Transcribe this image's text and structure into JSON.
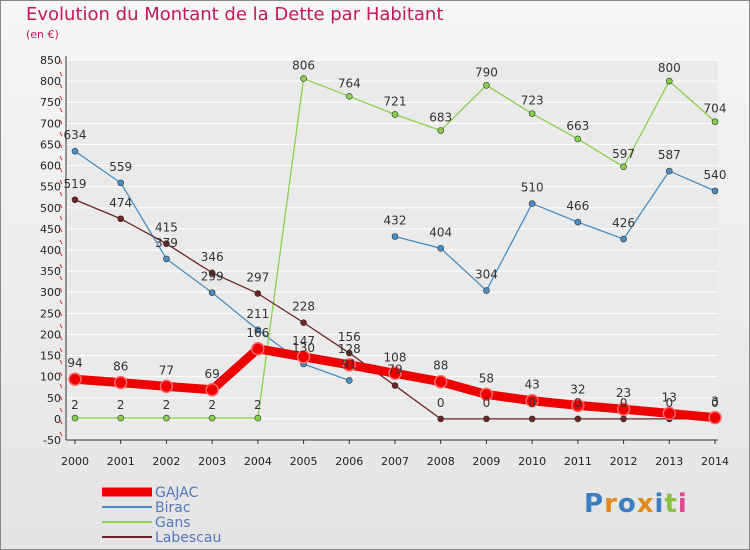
{
  "title": "Evolution du Montant de la Dette par Habitant",
  "subtitle": "(en €)",
  "logo_text": "Proxiti",
  "colors": {
    "title": "#c2185b",
    "GAJAC": "#ee0000",
    "Birac": "#4a8ec5",
    "Gans": "#8ad04a",
    "Labescau": "#6d2424",
    "grid": "#ffffff",
    "axis": "#333333"
  },
  "chart_data": {
    "type": "line",
    "title": "Evolution du Montant de la Dette par Habitant",
    "ylabel": "(en €)",
    "xlabel": "",
    "x": [
      2000,
      2001,
      2002,
      2003,
      2004,
      2005,
      2006,
      2007,
      2008,
      2009,
      2010,
      2011,
      2012,
      2013,
      2014
    ],
    "ylim": [
      -50,
      850
    ],
    "yticks": [
      -50,
      0,
      50,
      100,
      150,
      200,
      250,
      300,
      350,
      400,
      450,
      500,
      550,
      600,
      650,
      700,
      750,
      800,
      850
    ],
    "grid": true,
    "legend": "bottom-left",
    "series": [
      {
        "name": "GAJAC",
        "values": [
          94,
          86,
          77,
          69,
          166,
          147,
          128,
          108,
          88,
          58,
          43,
          32,
          23,
          13,
          3
        ]
      },
      {
        "name": "Birac",
        "values": [
          634,
          559,
          379,
          299,
          211,
          130,
          91,
          null,
          null,
          null,
          null,
          null,
          null,
          null,
          null
        ]
      },
      {
        "name": "Birac",
        "values": [
          null,
          null,
          null,
          null,
          null,
          null,
          null,
          432,
          404,
          304,
          510,
          466,
          426,
          587,
          540
        ]
      },
      {
        "name": "Gans",
        "values": [
          2,
          2,
          2,
          2,
          2,
          806,
          764,
          721,
          683,
          790,
          723,
          663,
          597,
          800,
          704
        ]
      },
      {
        "name": "Labescau",
        "values": [
          519,
          474,
          415,
          346,
          297,
          228,
          156,
          79,
          0,
          0,
          0,
          0,
          0,
          0,
          0
        ]
      }
    ],
    "labels": {
      "GAJAC": [
        "94",
        "86",
        "77",
        "69",
        "166",
        "147",
        "128",
        "108",
        "88",
        "58",
        "43",
        "32",
        "23",
        "13",
        "3"
      ],
      "Birac": [
        "634",
        "559",
        "379",
        "299",
        "211",
        "130",
        "91",
        "432",
        "404",
        "304",
        "510",
        "466",
        "426",
        "587",
        "540"
      ],
      "Gans": [
        "2",
        "2",
        "2",
        "2",
        "2",
        "806",
        "764",
        "721",
        "683",
        "790",
        "723",
        "663",
        "597",
        "800",
        "704"
      ],
      "Labescau": [
        "519",
        "474",
        "415",
        "346",
        "297",
        "228",
        "156",
        "79",
        "0",
        "0",
        "0",
        "0",
        "0",
        "0",
        "0"
      ]
    }
  },
  "legend": [
    {
      "name": "GAJAC"
    },
    {
      "name": "Birac"
    },
    {
      "name": "Gans"
    },
    {
      "name": "Labescau"
    }
  ]
}
